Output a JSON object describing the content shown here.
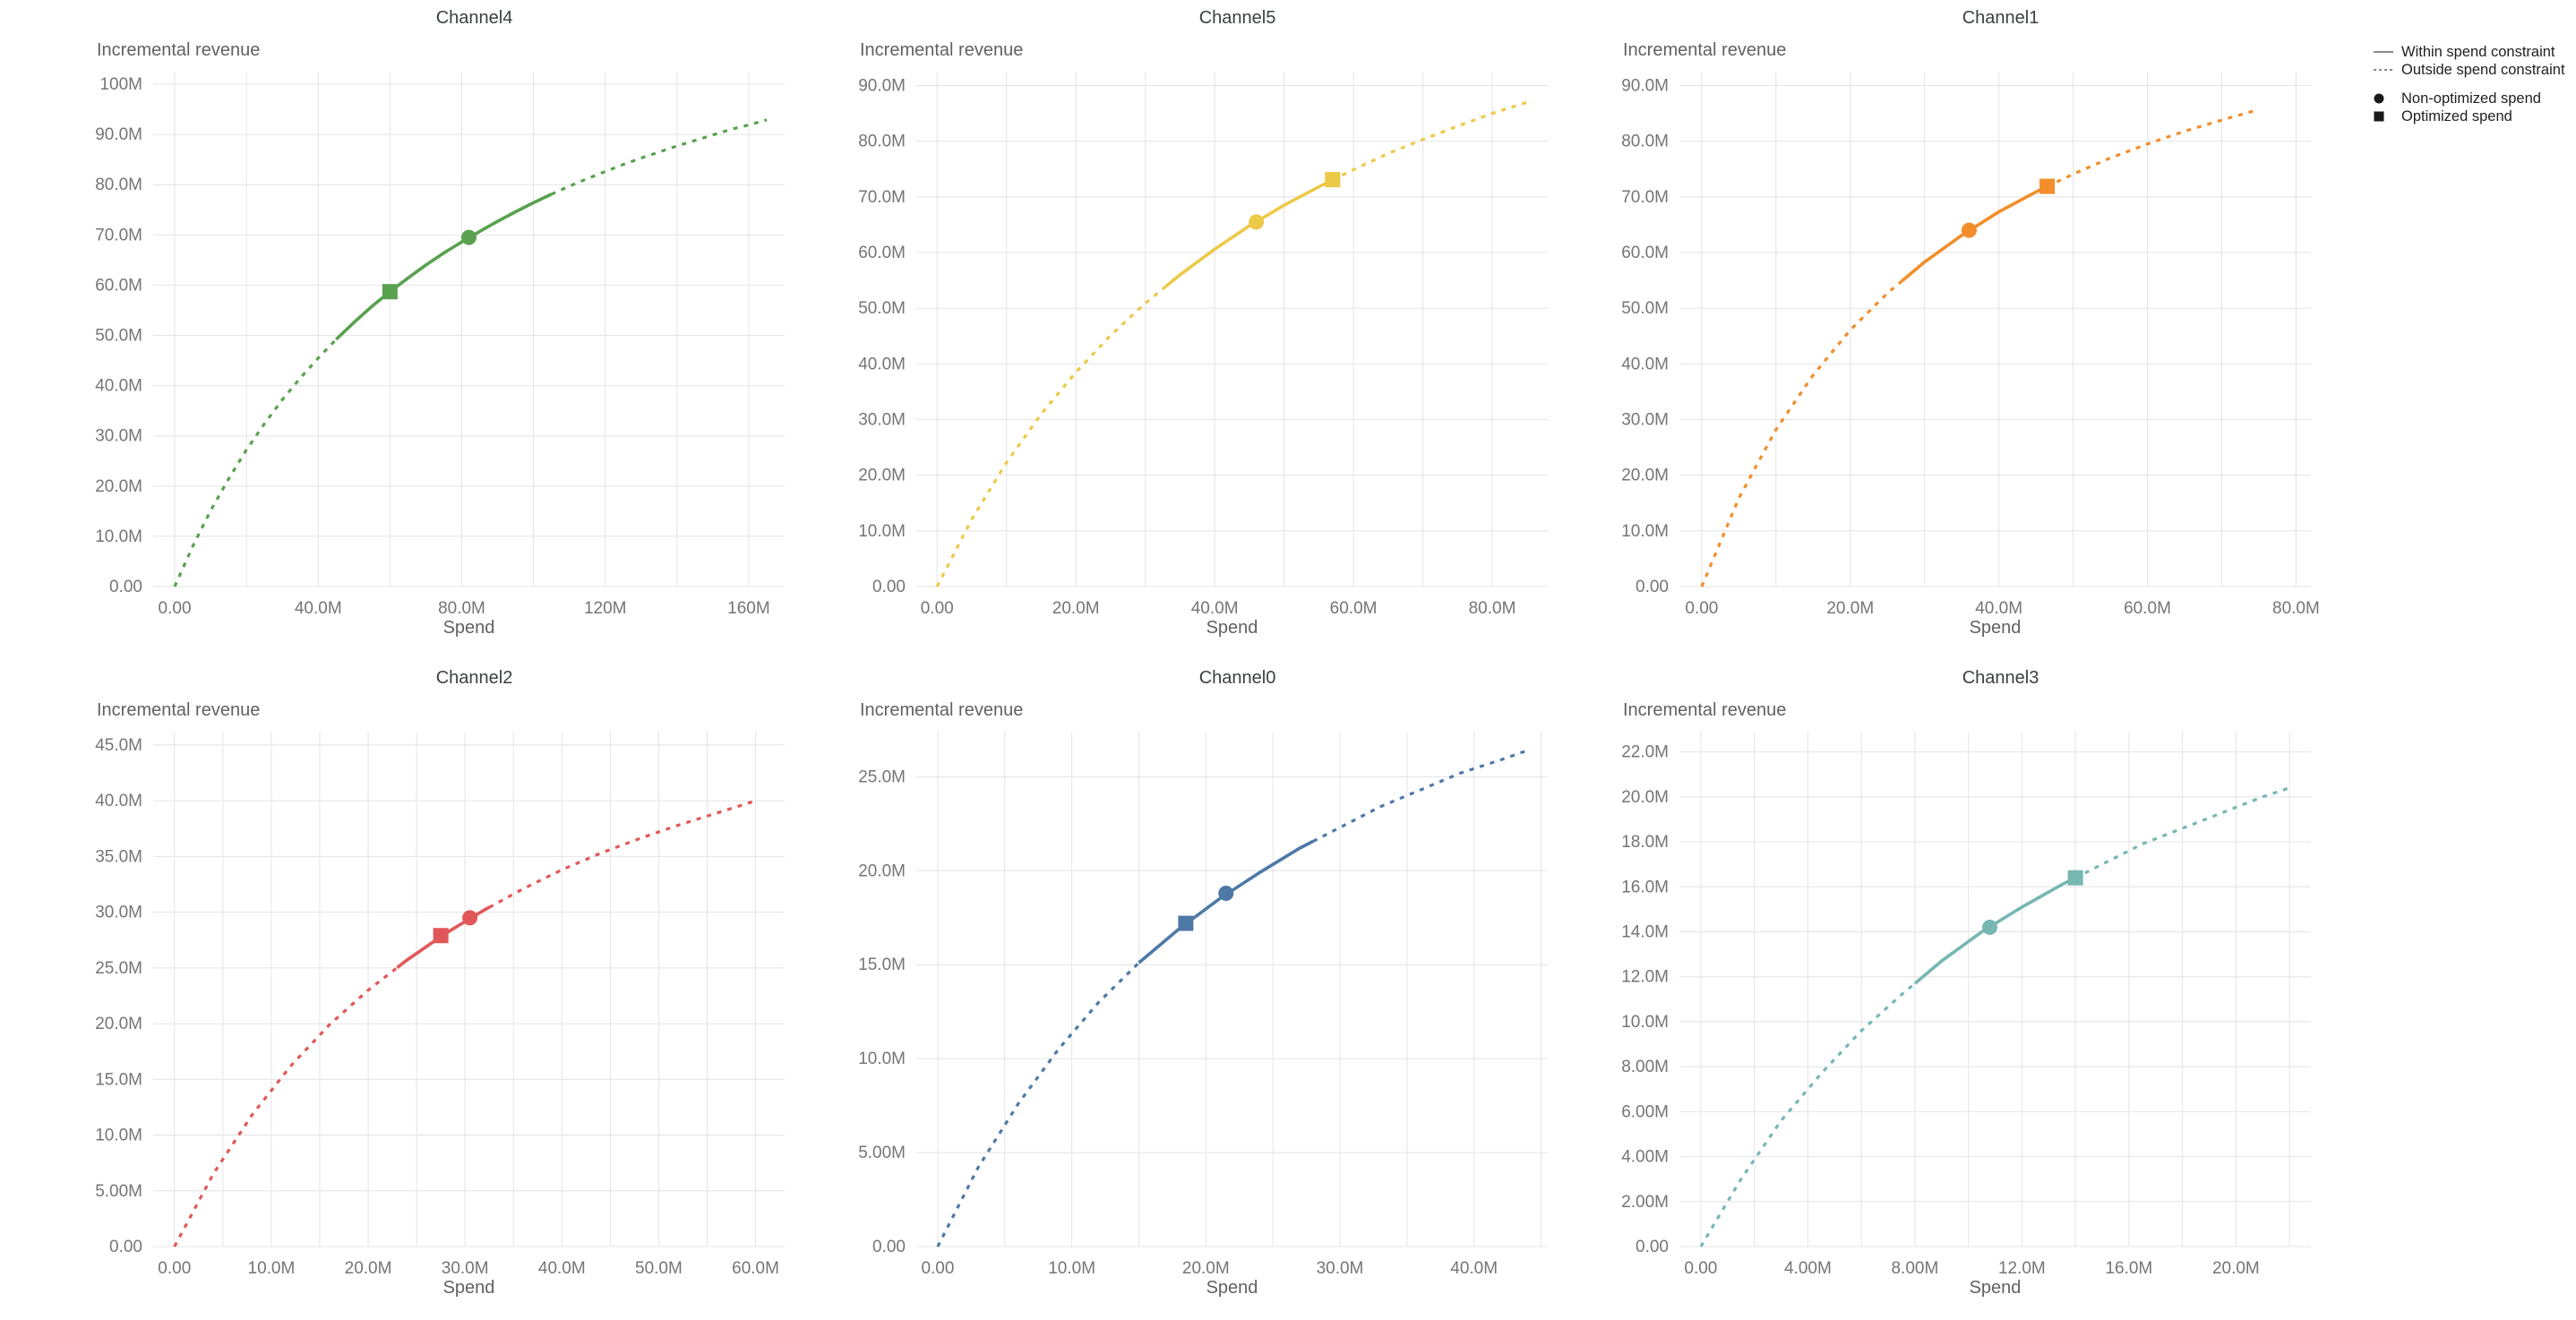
{
  "page": {
    "background": "#ffffff"
  },
  "legend": {
    "position": "top-right",
    "items": [
      {
        "icon": "solid-line",
        "label": "Within spend constraint"
      },
      {
        "icon": "dashed-line",
        "label": "Outside spend constraint"
      },
      {
        "icon": "filled-circle",
        "label": "Non-optimized spend"
      },
      {
        "icon": "filled-square",
        "label": "Optimized spend"
      }
    ]
  },
  "chart_data": [
    {
      "type": "line",
      "title": "Channel4",
      "xlabel": "Spend",
      "ylabel": "Incremental revenue",
      "value_unit": "millions",
      "color": "#59a14f",
      "x_domain": [
        -6,
        170
      ],
      "y_domain": [
        0,
        102.5
      ],
      "x_grid": [
        0,
        20,
        40,
        60,
        80,
        100,
        120,
        140,
        160
      ],
      "x_ticks": [
        {
          "v": 0,
          "label": "0.00"
        },
        {
          "v": 40,
          "label": "40.0M"
        },
        {
          "v": 80,
          "label": "80.0M"
        },
        {
          "v": 120,
          "label": "120M"
        },
        {
          "v": 160,
          "label": "160M"
        }
      ],
      "y_ticks": [
        {
          "v": 0,
          "label": "0.00"
        },
        {
          "v": 10,
          "label": "10.0M"
        },
        {
          "v": 20,
          "label": "20.0M"
        },
        {
          "v": 30,
          "label": "30.0M"
        },
        {
          "v": 40,
          "label": "40.0M"
        },
        {
          "v": 50,
          "label": "50.0M"
        },
        {
          "v": 60,
          "label": "60.0M"
        },
        {
          "v": 70,
          "label": "70.0M"
        },
        {
          "v": 80,
          "label": "80.0M"
        },
        {
          "v": 90,
          "label": "90.0M"
        },
        {
          "v": 100,
          "label": "100M"
        }
      ],
      "curve": {
        "x": [
          0,
          5,
          10,
          15,
          20,
          25,
          30,
          35,
          40,
          45,
          50,
          55,
          60,
          65,
          70,
          75,
          80,
          85,
          90,
          95,
          100,
          105,
          110,
          115,
          120,
          125,
          130,
          135,
          140,
          145,
          150,
          155,
          160,
          165
        ],
        "y": [
          0,
          8.0,
          15.1,
          21.4,
          27.2,
          32.4,
          37.2,
          41.5,
          45.5,
          49.2,
          52.6,
          55.8,
          58.7,
          61.4,
          64.0,
          66.4,
          68.6,
          70.7,
          72.7,
          74.6,
          76.4,
          78.1,
          79.7,
          81.2,
          82.6,
          84.0,
          85.3,
          86.5,
          87.7,
          88.8,
          89.9,
          91.0,
          91.9,
          92.9
        ]
      },
      "solid_range": [
        45,
        105
      ],
      "markers": {
        "optimized": {
          "x": 60,
          "y": 58.7
        },
        "non_optimized": {
          "x": 82,
          "y": 69.5
        }
      }
    },
    {
      "type": "line",
      "title": "Channel5",
      "xlabel": "Spend",
      "ylabel": "Incremental revenue",
      "value_unit": "millions",
      "color": "#edc948",
      "x_domain": [
        -3,
        88
      ],
      "y_domain": [
        0,
        92.5
      ],
      "x_grid": [
        0,
        10,
        20,
        30,
        40,
        50,
        60,
        70,
        80
      ],
      "x_ticks": [
        {
          "v": 0,
          "label": "0.00"
        },
        {
          "v": 20,
          "label": "20.0M"
        },
        {
          "v": 40,
          "label": "40.0M"
        },
        {
          "v": 60,
          "label": "60.0M"
        },
        {
          "v": 80,
          "label": "80.0M"
        }
      ],
      "y_ticks": [
        {
          "v": 0,
          "label": "0.00"
        },
        {
          "v": 10,
          "label": "10.0M"
        },
        {
          "v": 20,
          "label": "20.0M"
        },
        {
          "v": 30,
          "label": "30.0M"
        },
        {
          "v": 40,
          "label": "40.0M"
        },
        {
          "v": 50,
          "label": "50.0M"
        },
        {
          "v": 60,
          "label": "60.0M"
        },
        {
          "v": 70,
          "label": "70.0M"
        },
        {
          "v": 80,
          "label": "80.0M"
        },
        {
          "v": 90,
          "label": "90.0M"
        }
      ],
      "curve": {
        "x": [
          0,
          5,
          10,
          15,
          20,
          25,
          30,
          35,
          40,
          45,
          50,
          55,
          60,
          65,
          70,
          75,
          80,
          85
        ],
        "y": [
          0,
          12.1,
          22.3,
          31.0,
          38.5,
          45.1,
          50.9,
          56.0,
          60.6,
          64.8,
          68.5,
          71.8,
          74.9,
          77.8,
          80.3,
          82.7,
          85.0,
          87.0
        ]
      },
      "solid_range": [
        33,
        57
      ],
      "markers": {
        "non_optimized": {
          "x": 46,
          "y": 65.5
        },
        "optimized": {
          "x": 57,
          "y": 73.1
        }
      }
    },
    {
      "type": "line",
      "title": "Channel1",
      "xlabel": "Spend",
      "ylabel": "Incremental revenue",
      "value_unit": "millions",
      "color": "#f28e2b",
      "x_domain": [
        -3,
        82
      ],
      "y_domain": [
        0,
        92.5
      ],
      "x_grid": [
        0,
        10,
        20,
        30,
        40,
        50,
        60,
        70,
        80
      ],
      "x_ticks": [
        {
          "v": 0,
          "label": "0.00"
        },
        {
          "v": 20,
          "label": "20.0M"
        },
        {
          "v": 40,
          "label": "40.0M"
        },
        {
          "v": 60,
          "label": "60.0M"
        },
        {
          "v": 80,
          "label": "80.0M"
        }
      ],
      "y_ticks": [
        {
          "v": 0,
          "label": "0.00"
        },
        {
          "v": 10,
          "label": "10.0M"
        },
        {
          "v": 20,
          "label": "20.0M"
        },
        {
          "v": 30,
          "label": "30.0M"
        },
        {
          "v": 40,
          "label": "40.0M"
        },
        {
          "v": 50,
          "label": "50.0M"
        },
        {
          "v": 60,
          "label": "60.0M"
        },
        {
          "v": 70,
          "label": "70.0M"
        },
        {
          "v": 80,
          "label": "80.0M"
        },
        {
          "v": 90,
          "label": "90.0M"
        }
      ],
      "curve": {
        "x": [
          0,
          5,
          10,
          15,
          20,
          25,
          30,
          35,
          40,
          45,
          50,
          55,
          60,
          65,
          70,
          75
        ],
        "y": [
          0,
          15.9,
          28.2,
          38.0,
          46.1,
          52.7,
          58.3,
          63.1,
          67.3,
          70.9,
          74.1,
          77.0,
          79.5,
          81.8,
          83.8,
          85.7
        ]
      },
      "solid_range": [
        27,
        46.5
      ],
      "markers": {
        "non_optimized": {
          "x": 36,
          "y": 64.0
        },
        "optimized": {
          "x": 46.5,
          "y": 71.9
        }
      }
    },
    {
      "type": "line",
      "title": "Channel2",
      "xlabel": "Spend",
      "ylabel": "Incremental revenue",
      "value_unit": "millions",
      "color": "#e15759",
      "x_domain": [
        -2.2,
        63
      ],
      "y_domain": [
        0,
        46.2
      ],
      "x_grid": [
        0,
        5,
        10,
        15,
        20,
        25,
        30,
        35,
        40,
        45,
        50,
        55,
        60
      ],
      "x_ticks": [
        {
          "v": 0,
          "label": "0.00"
        },
        {
          "v": 10,
          "label": "10.0M"
        },
        {
          "v": 20,
          "label": "20.0M"
        },
        {
          "v": 30,
          "label": "30.0M"
        },
        {
          "v": 40,
          "label": "40.0M"
        },
        {
          "v": 50,
          "label": "50.0M"
        },
        {
          "v": 60,
          "label": "60.0M"
        }
      ],
      "y_ticks": [
        {
          "v": 0,
          "label": "0.00"
        },
        {
          "v": 5,
          "label": "5.00M"
        },
        {
          "v": 10,
          "label": "10.0M"
        },
        {
          "v": 15,
          "label": "15.0M"
        },
        {
          "v": 20,
          "label": "20.0M"
        },
        {
          "v": 25,
          "label": "25.0M"
        },
        {
          "v": 30,
          "label": "30.0M"
        },
        {
          "v": 35,
          "label": "35.0M"
        },
        {
          "v": 40,
          "label": "40.0M"
        },
        {
          "v": 45,
          "label": "45.0M"
        }
      ],
      "curve": {
        "x": [
          0,
          4,
          8,
          12,
          16,
          20,
          24,
          28,
          32,
          36,
          40,
          44,
          48,
          52,
          56,
          60
        ],
        "y": [
          0,
          6.5,
          11.8,
          16.2,
          19.9,
          23.0,
          25.7,
          28.1,
          30.2,
          32.1,
          33.8,
          35.3,
          36.6,
          37.8,
          38.9,
          40.0
        ]
      },
      "solid_range": [
        23,
        32.5
      ],
      "markers": {
        "optimized": {
          "x": 27.5,
          "y": 27.9
        },
        "non_optimized": {
          "x": 30.5,
          "y": 29.5
        }
      }
    },
    {
      "type": "line",
      "title": "Channel0",
      "xlabel": "Spend",
      "ylabel": "Incremental revenue",
      "value_unit": "millions",
      "color": "#4e79a7",
      "x_domain": [
        -1.6,
        45.5
      ],
      "y_domain": [
        0,
        27.4
      ],
      "x_grid": [
        0,
        5,
        10,
        15,
        20,
        25,
        30,
        35,
        40,
        45
      ],
      "x_ticks": [
        {
          "v": 0,
          "label": "0.00"
        },
        {
          "v": 10,
          "label": "10.0M"
        },
        {
          "v": 20,
          "label": "20.0M"
        },
        {
          "v": 30,
          "label": "30.0M"
        },
        {
          "v": 40,
          "label": "40.0M"
        }
      ],
      "y_ticks": [
        {
          "v": 0,
          "label": "0.00"
        },
        {
          "v": 5,
          "label": "5.00M"
        },
        {
          "v": 10,
          "label": "10.0M"
        },
        {
          "v": 15,
          "label": "15.0M"
        },
        {
          "v": 20,
          "label": "20.0M"
        },
        {
          "v": 25,
          "label": "25.0M"
        }
      ],
      "curve": {
        "x": [
          0,
          3,
          6,
          9,
          12,
          15,
          18,
          21,
          24,
          27,
          30,
          33,
          36,
          39,
          42,
          44
        ],
        "y": [
          0,
          4.2,
          7.6,
          10.5,
          13.0,
          15.1,
          16.9,
          18.5,
          19.9,
          21.2,
          22.3,
          23.4,
          24.3,
          25.2,
          25.9,
          26.4
        ]
      },
      "solid_range": [
        15,
        28
      ],
      "markers": {
        "optimized": {
          "x": 18.5,
          "y": 17.2
        },
        "non_optimized": {
          "x": 21.5,
          "y": 18.8
        }
      }
    },
    {
      "type": "line",
      "title": "Channel3",
      "xlabel": "Spend",
      "ylabel": "Incremental revenue",
      "value_unit": "millions",
      "color": "#76b7b2",
      "x_domain": [
        -0.8,
        22.8
      ],
      "y_domain": [
        0,
        22.9
      ],
      "x_grid": [
        0,
        2,
        4,
        6,
        8,
        10,
        12,
        14,
        16,
        18,
        20,
        22
      ],
      "x_ticks": [
        {
          "v": 0,
          "label": "0.00"
        },
        {
          "v": 4,
          "label": "4.00M"
        },
        {
          "v": 8,
          "label": "8.00M"
        },
        {
          "v": 12,
          "label": "12.0M"
        },
        {
          "v": 16,
          "label": "16.0M"
        },
        {
          "v": 20,
          "label": "20.0M"
        }
      ],
      "y_ticks": [
        {
          "v": 0,
          "label": "0.00"
        },
        {
          "v": 2,
          "label": "2.00M"
        },
        {
          "v": 4,
          "label": "4.00M"
        },
        {
          "v": 6,
          "label": "6.00M"
        },
        {
          "v": 8,
          "label": "8.00M"
        },
        {
          "v": 10,
          "label": "10.0M"
        },
        {
          "v": 12,
          "label": "12.0M"
        },
        {
          "v": 14,
          "label": "14.0M"
        },
        {
          "v": 16,
          "label": "16.0M"
        },
        {
          "v": 18,
          "label": "18.0M"
        },
        {
          "v": 20,
          "label": "20.0M"
        },
        {
          "v": 22,
          "label": "22.0M"
        }
      ],
      "curve": {
        "x": [
          0,
          1.5,
          3,
          4.5,
          6,
          7.5,
          9,
          10.5,
          12,
          13.5,
          15,
          16.5,
          18,
          19.5,
          21,
          22
        ],
        "y": [
          0,
          3.0,
          5.6,
          7.7,
          9.6,
          11.2,
          12.7,
          14.0,
          15.1,
          16.1,
          17.0,
          17.9,
          18.6,
          19.3,
          20.0,
          20.4
        ]
      },
      "solid_range": [
        8,
        14
      ],
      "markers": {
        "non_optimized": {
          "x": 10.8,
          "y": 14.2
        },
        "optimized": {
          "x": 14,
          "y": 16.4
        }
      }
    }
  ]
}
